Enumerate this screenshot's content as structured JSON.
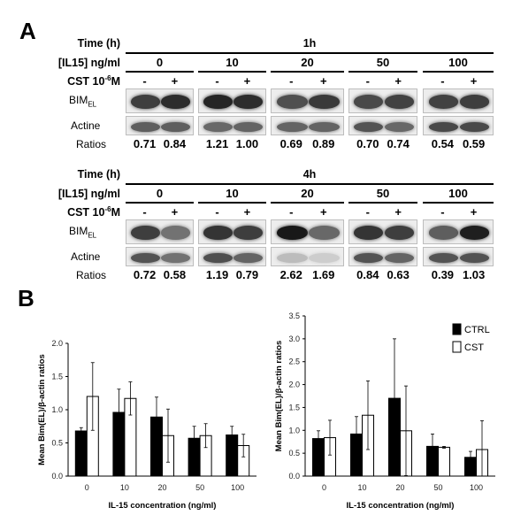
{
  "panel_a": {
    "letter": "A",
    "labels": {
      "time": "Time (h)",
      "il15": "[IL15] ng/ml",
      "cst": "CST 10",
      "cst_sup": "-6",
      "cst_unit": "M",
      "bim": "BIM",
      "bim_sub": "EL",
      "actine": "Actine",
      "ratios": "Ratios"
    },
    "treatment_minus": "-",
    "treatment_plus": "+",
    "concentrations": [
      "0",
      "10",
      "20",
      "50",
      "100"
    ],
    "blocks": [
      {
        "time": "1h",
        "ratios": [
          "0.71",
          "0.84",
          "1.21",
          "1.00",
          "0.69",
          "0.89",
          "0.70",
          "0.74",
          "0.54",
          "0.59"
        ],
        "bim_intensity": [
          0.8,
          0.88,
          0.92,
          0.88,
          0.72,
          0.82,
          0.75,
          0.78,
          0.78,
          0.8
        ],
        "actine_intensity": [
          0.65,
          0.65,
          0.6,
          0.62,
          0.62,
          0.62,
          0.7,
          0.6,
          0.75,
          0.75
        ]
      },
      {
        "time": "4h",
        "ratios": [
          "0.72",
          "0.58",
          "1.19",
          "0.79",
          "2.62",
          "1.69",
          "0.84",
          "0.63",
          "0.39",
          "1.03"
        ],
        "bim_intensity": [
          0.8,
          0.55,
          0.85,
          0.8,
          0.98,
          0.6,
          0.85,
          0.8,
          0.65,
          0.95
        ],
        "actine_intensity": [
          0.7,
          0.55,
          0.72,
          0.62,
          0.2,
          0.12,
          0.7,
          0.62,
          0.7,
          0.7
        ]
      }
    ]
  },
  "panel_b": {
    "letter": "B",
    "legend": [
      "CTRL",
      "CST"
    ],
    "colors": {
      "ctrl": "#000000",
      "cst": "#ffffff",
      "axis": "#000000"
    }
  },
  "chart_data": [
    {
      "type": "bar",
      "categories": [
        "0",
        "10",
        "20",
        "50",
        "100"
      ],
      "series": [
        {
          "name": "CTRL",
          "values": [
            0.68,
            0.96,
            0.89,
            0.57,
            0.62
          ],
          "errors": [
            0.05,
            0.35,
            0.3,
            0.18,
            0.13
          ]
        },
        {
          "name": "CST",
          "values": [
            1.2,
            1.17,
            0.61,
            0.61,
            0.46
          ],
          "errors": [
            0.51,
            0.25,
            0.4,
            0.18,
            0.17
          ]
        }
      ],
      "xlabel": "IL-15 concentration (ng/ml)",
      "ylabel": "Mean Bim(EL)/β-actin ratios",
      "ylim": [
        0,
        2.0
      ],
      "yticks": [
        "0.0",
        "0.5",
        "1.0",
        "1.5",
        "2.0"
      ],
      "grid": false
    },
    {
      "type": "bar",
      "categories": [
        "0",
        "10",
        "20",
        "50",
        "100"
      ],
      "series": [
        {
          "name": "CTRL",
          "values": [
            0.82,
            0.92,
            1.7,
            0.65,
            0.41
          ],
          "errors": [
            0.17,
            0.38,
            1.3,
            0.27,
            0.13
          ]
        },
        {
          "name": "CST",
          "values": [
            0.84,
            1.33,
            0.99,
            0.63,
            0.58
          ],
          "errors": [
            0.38,
            0.75,
            0.98,
            0.02,
            0.63
          ]
        }
      ],
      "xlabel": "IL-15 concentration (ng/ml)",
      "ylabel": "Mean Bim(EL)/β-actin ratios",
      "ylim": [
        0,
        3.5
      ],
      "yticks": [
        "0.0",
        "0.5",
        "1.0",
        "1.5",
        "2.0",
        "2.5",
        "3.0",
        "3.5"
      ],
      "grid": false
    }
  ]
}
